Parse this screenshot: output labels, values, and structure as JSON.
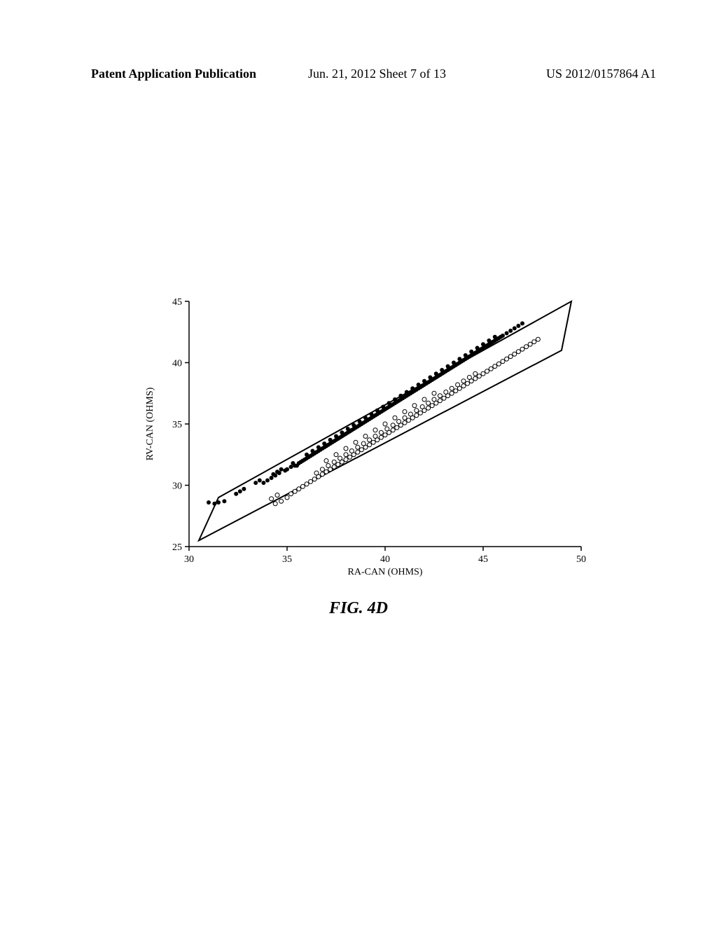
{
  "header": {
    "left": "Patent Application Publication",
    "center": "Jun. 21, 2012  Sheet 7 of 13",
    "right": "US 2012/0157864 A1"
  },
  "chart": {
    "type": "scatter",
    "xlabel": "RA-CAN (OHMS)",
    "ylabel": "RV-CAN (OHMS)",
    "xlim": [
      30,
      50
    ],
    "ylim": [
      25,
      45
    ],
    "xticks": [
      30,
      35,
      40,
      45,
      50
    ],
    "yticks": [
      25,
      30,
      35,
      40,
      45
    ],
    "tick_fontsize": 14,
    "label_fontsize": 14,
    "background_color": "#ffffff",
    "axis_color": "#000000",
    "box_stroke": "#000000",
    "box_stroke_width": 2,
    "box_corners": [
      [
        30.5,
        25.5
      ],
      [
        31.5,
        29
      ],
      [
        49.5,
        45
      ],
      [
        49,
        41
      ]
    ],
    "series": [
      {
        "name": "filled",
        "marker": "circle-filled",
        "color": "#000000",
        "size": 3,
        "points": [
          [
            31.0,
            28.6
          ],
          [
            31.3,
            28.5
          ],
          [
            31.5,
            28.6
          ],
          [
            31.8,
            28.7
          ],
          [
            32.4,
            29.3
          ],
          [
            32.6,
            29.5
          ],
          [
            32.8,
            29.7
          ],
          [
            33.4,
            30.2
          ],
          [
            33.6,
            30.4
          ],
          [
            33.8,
            30.2
          ],
          [
            34.0,
            30.4
          ],
          [
            34.2,
            30.6
          ],
          [
            34.4,
            30.8
          ],
          [
            34.6,
            31.0
          ],
          [
            34.3,
            30.9
          ],
          [
            34.5,
            31.1
          ],
          [
            34.7,
            31.3
          ],
          [
            34.9,
            31.2
          ],
          [
            35.0,
            31.3
          ],
          [
            35.2,
            31.5
          ],
          [
            35.4,
            31.6
          ],
          [
            35.3,
            31.8
          ],
          [
            35.5,
            31.6
          ],
          [
            35.6,
            31.8
          ],
          [
            35.7,
            31.9
          ],
          [
            35.8,
            32.0
          ],
          [
            35.9,
            32.1
          ],
          [
            36.0,
            32.2
          ],
          [
            36.1,
            32.3
          ],
          [
            36.2,
            32.4
          ],
          [
            36.3,
            32.5
          ],
          [
            36.4,
            32.6
          ],
          [
            36.5,
            32.7
          ],
          [
            36.6,
            32.8
          ],
          [
            36.7,
            32.9
          ],
          [
            36.8,
            33.0
          ],
          [
            36.9,
            33.1
          ],
          [
            37.0,
            33.2
          ],
          [
            37.1,
            33.3
          ],
          [
            37.2,
            33.4
          ],
          [
            37.3,
            33.5
          ],
          [
            37.4,
            33.6
          ],
          [
            37.5,
            33.7
          ],
          [
            37.6,
            33.8
          ],
          [
            37.7,
            33.9
          ],
          [
            37.8,
            34.0
          ],
          [
            37.9,
            34.1
          ],
          [
            38.0,
            34.2
          ],
          [
            38.1,
            34.3
          ],
          [
            38.2,
            34.4
          ],
          [
            38.3,
            34.5
          ],
          [
            38.4,
            34.6
          ],
          [
            38.5,
            34.7
          ],
          [
            38.6,
            34.8
          ],
          [
            38.7,
            34.9
          ],
          [
            38.8,
            35.0
          ],
          [
            38.9,
            35.1
          ],
          [
            39.0,
            35.2
          ],
          [
            39.1,
            35.3
          ],
          [
            39.2,
            35.4
          ],
          [
            39.3,
            35.5
          ],
          [
            39.4,
            35.6
          ],
          [
            39.5,
            35.7
          ],
          [
            39.6,
            35.8
          ],
          [
            39.7,
            35.9
          ],
          [
            39.8,
            36.0
          ],
          [
            39.9,
            36.1
          ],
          [
            40.0,
            36.2
          ],
          [
            40.1,
            36.3
          ],
          [
            40.2,
            36.4
          ],
          [
            40.3,
            36.5
          ],
          [
            40.4,
            36.6
          ],
          [
            40.5,
            36.7
          ],
          [
            40.6,
            36.8
          ],
          [
            40.7,
            36.9
          ],
          [
            40.8,
            37.0
          ],
          [
            40.9,
            37.1
          ],
          [
            41.0,
            37.2
          ],
          [
            41.1,
            37.3
          ],
          [
            41.2,
            37.4
          ],
          [
            41.3,
            37.5
          ],
          [
            41.4,
            37.6
          ],
          [
            41.5,
            37.7
          ],
          [
            41.6,
            37.8
          ],
          [
            41.7,
            37.9
          ],
          [
            41.8,
            38.0
          ],
          [
            41.9,
            38.1
          ],
          [
            42.0,
            38.2
          ],
          [
            42.1,
            38.3
          ],
          [
            42.2,
            38.4
          ],
          [
            42.3,
            38.5
          ],
          [
            42.4,
            38.6
          ],
          [
            42.5,
            38.7
          ],
          [
            42.6,
            38.8
          ],
          [
            42.7,
            38.9
          ],
          [
            42.8,
            39.0
          ],
          [
            42.9,
            39.1
          ],
          [
            43.0,
            39.2
          ],
          [
            43.1,
            39.3
          ],
          [
            43.2,
            39.4
          ],
          [
            43.3,
            39.5
          ],
          [
            43.4,
            39.6
          ],
          [
            43.5,
            39.7
          ],
          [
            43.6,
            39.8
          ],
          [
            43.7,
            39.9
          ],
          [
            43.8,
            40.0
          ],
          [
            43.9,
            40.1
          ],
          [
            44.0,
            40.2
          ],
          [
            44.1,
            40.3
          ],
          [
            44.2,
            40.4
          ],
          [
            44.3,
            40.5
          ],
          [
            44.4,
            40.6
          ],
          [
            44.5,
            40.7
          ],
          [
            44.6,
            40.8
          ],
          [
            44.7,
            40.9
          ],
          [
            44.8,
            41.0
          ],
          [
            44.9,
            41.1
          ],
          [
            45.0,
            41.2
          ],
          [
            45.1,
            41.3
          ],
          [
            45.2,
            41.4
          ],
          [
            45.3,
            41.5
          ],
          [
            45.4,
            41.6
          ],
          [
            45.5,
            41.7
          ],
          [
            45.6,
            41.8
          ],
          [
            45.7,
            41.9
          ],
          [
            45.8,
            42.0
          ],
          [
            45.9,
            42.1
          ],
          [
            46.0,
            42.2
          ],
          [
            46.2,
            42.4
          ],
          [
            46.4,
            42.6
          ],
          [
            46.6,
            42.8
          ],
          [
            46.8,
            43.0
          ],
          [
            47.0,
            43.2
          ],
          [
            36.0,
            32.5
          ],
          [
            36.3,
            32.8
          ],
          [
            36.6,
            33.1
          ],
          [
            36.9,
            33.4
          ],
          [
            37.2,
            33.7
          ],
          [
            37.5,
            34.0
          ],
          [
            37.8,
            34.3
          ],
          [
            38.1,
            34.6
          ],
          [
            38.4,
            34.9
          ],
          [
            38.7,
            35.2
          ],
          [
            39.0,
            35.5
          ],
          [
            39.3,
            35.8
          ],
          [
            39.6,
            36.1
          ],
          [
            39.9,
            36.4
          ],
          [
            40.2,
            36.7
          ],
          [
            40.5,
            37.0
          ],
          [
            40.8,
            37.3
          ],
          [
            41.1,
            37.6
          ],
          [
            41.4,
            37.9
          ],
          [
            41.7,
            38.2
          ],
          [
            42.0,
            38.5
          ],
          [
            42.3,
            38.8
          ],
          [
            42.6,
            39.1
          ],
          [
            42.9,
            39.4
          ],
          [
            43.2,
            39.7
          ],
          [
            43.5,
            40.0
          ],
          [
            43.8,
            40.3
          ],
          [
            44.1,
            40.6
          ],
          [
            44.4,
            40.9
          ],
          [
            44.7,
            41.2
          ],
          [
            45.0,
            41.5
          ],
          [
            45.3,
            41.8
          ],
          [
            45.6,
            42.1
          ]
        ]
      },
      {
        "name": "open",
        "marker": "circle-open",
        "color": "#000000",
        "size": 3,
        "points": [
          [
            34.2,
            28.9
          ],
          [
            34.5,
            29.2
          ],
          [
            34.4,
            28.5
          ],
          [
            34.7,
            28.7
          ],
          [
            35.0,
            29.0
          ],
          [
            35.2,
            29.3
          ],
          [
            35.4,
            29.5
          ],
          [
            35.6,
            29.7
          ],
          [
            35.8,
            29.9
          ],
          [
            36.0,
            30.1
          ],
          [
            36.2,
            30.3
          ],
          [
            36.4,
            30.5
          ],
          [
            36.6,
            30.7
          ],
          [
            36.8,
            30.9
          ],
          [
            37.0,
            31.1
          ],
          [
            37.2,
            31.3
          ],
          [
            37.4,
            31.5
          ],
          [
            37.6,
            31.7
          ],
          [
            37.8,
            31.9
          ],
          [
            38.0,
            32.1
          ],
          [
            38.2,
            32.3
          ],
          [
            38.4,
            32.5
          ],
          [
            38.6,
            32.7
          ],
          [
            38.8,
            32.9
          ],
          [
            39.0,
            33.1
          ],
          [
            39.2,
            33.3
          ],
          [
            39.4,
            33.5
          ],
          [
            39.6,
            33.7
          ],
          [
            39.8,
            33.9
          ],
          [
            40.0,
            34.1
          ],
          [
            40.2,
            34.3
          ],
          [
            40.4,
            34.5
          ],
          [
            40.6,
            34.7
          ],
          [
            40.8,
            34.9
          ],
          [
            41.0,
            35.1
          ],
          [
            41.2,
            35.3
          ],
          [
            41.4,
            35.5
          ],
          [
            41.6,
            35.7
          ],
          [
            41.8,
            35.9
          ],
          [
            42.0,
            36.1
          ],
          [
            42.2,
            36.3
          ],
          [
            42.4,
            36.5
          ],
          [
            42.6,
            36.7
          ],
          [
            42.8,
            36.9
          ],
          [
            43.0,
            37.1
          ],
          [
            43.2,
            37.3
          ],
          [
            43.4,
            37.5
          ],
          [
            43.6,
            37.7
          ],
          [
            43.8,
            37.9
          ],
          [
            44.0,
            38.1
          ],
          [
            44.2,
            38.3
          ],
          [
            44.4,
            38.5
          ],
          [
            44.6,
            38.7
          ],
          [
            44.8,
            38.9
          ],
          [
            45.0,
            39.1
          ],
          [
            45.2,
            39.3
          ],
          [
            45.4,
            39.5
          ],
          [
            45.6,
            39.7
          ],
          [
            45.8,
            39.9
          ],
          [
            46.0,
            40.1
          ],
          [
            46.2,
            40.3
          ],
          [
            46.4,
            40.5
          ],
          [
            46.6,
            40.7
          ],
          [
            46.8,
            40.9
          ],
          [
            47.0,
            41.1
          ],
          [
            47.2,
            41.3
          ],
          [
            47.4,
            41.5
          ],
          [
            47.6,
            41.7
          ],
          [
            47.8,
            41.9
          ],
          [
            36.5,
            31.0
          ],
          [
            36.8,
            31.3
          ],
          [
            37.1,
            31.6
          ],
          [
            37.4,
            31.9
          ],
          [
            37.7,
            32.2
          ],
          [
            38.0,
            32.5
          ],
          [
            38.3,
            32.8
          ],
          [
            38.6,
            33.1
          ],
          [
            38.9,
            33.4
          ],
          [
            39.2,
            33.7
          ],
          [
            39.5,
            34.0
          ],
          [
            39.8,
            34.3
          ],
          [
            40.1,
            34.6
          ],
          [
            40.4,
            34.9
          ],
          [
            40.7,
            35.2
          ],
          [
            41.0,
            35.5
          ],
          [
            41.3,
            35.8
          ],
          [
            41.6,
            36.1
          ],
          [
            41.9,
            36.4
          ],
          [
            42.2,
            36.7
          ],
          [
            42.5,
            37.0
          ],
          [
            42.8,
            37.3
          ],
          [
            43.1,
            37.6
          ],
          [
            43.4,
            37.9
          ],
          [
            43.7,
            38.2
          ],
          [
            44.0,
            38.5
          ],
          [
            44.3,
            38.8
          ],
          [
            44.6,
            39.1
          ],
          [
            37.0,
            32.0
          ],
          [
            37.5,
            32.5
          ],
          [
            38.0,
            33.0
          ],
          [
            38.5,
            33.5
          ],
          [
            39.0,
            34.0
          ],
          [
            39.5,
            34.5
          ],
          [
            40.0,
            35.0
          ],
          [
            40.5,
            35.5
          ],
          [
            41.0,
            36.0
          ],
          [
            41.5,
            36.5
          ],
          [
            42.0,
            37.0
          ],
          [
            42.5,
            37.5
          ]
        ]
      }
    ]
  },
  "caption": "FIG. 4D"
}
